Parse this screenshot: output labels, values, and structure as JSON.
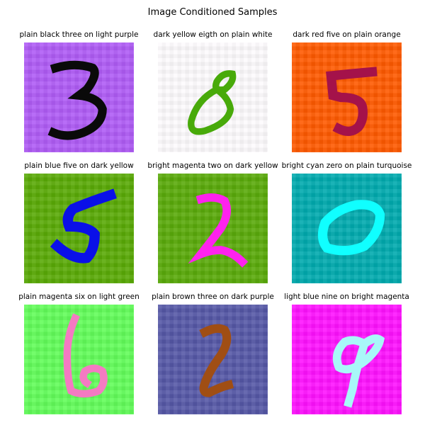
{
  "title": "Image Conditioned Samples",
  "samples": [
    {
      "caption": "plain black three on light purple",
      "digit": "three",
      "fg": "#0a0a0a",
      "bg": "#b05cf6"
    },
    {
      "caption": "dark yellow eigth on plain white",
      "digit": "eight",
      "fg": "#48aa0a",
      "bg": "#fdfbfd"
    },
    {
      "caption": "dark red five on plain orange",
      "digit": "five",
      "fg": "#a4124a",
      "bg": "#ff5a00"
    },
    {
      "caption": "plain blue five on dark yellow",
      "digit": "five",
      "fg": "#0a10e8",
      "bg": "#5aaa06"
    },
    {
      "caption": "bright magenta two on dark yellow",
      "digit": "two",
      "fg": "#ff22ee",
      "bg": "#5aaa0a"
    },
    {
      "caption": "bright cyan zero on plain turquoise",
      "digit": "zero",
      "fg": "#10ffff",
      "bg": "#00aaae"
    },
    {
      "caption": "plain magenta six on light green",
      "digit": "six",
      "fg": "#f47ac2",
      "bg": "#62fd5a"
    },
    {
      "caption": "plain brown three on dark purple",
      "digit": "two",
      "fg": "#a04e14",
      "bg": "#5658a6"
    },
    {
      "caption": "light blue nine on bright magenta",
      "digit": "nine",
      "fg": "#a8f8f8",
      "bg": "#ff12ff"
    }
  ]
}
